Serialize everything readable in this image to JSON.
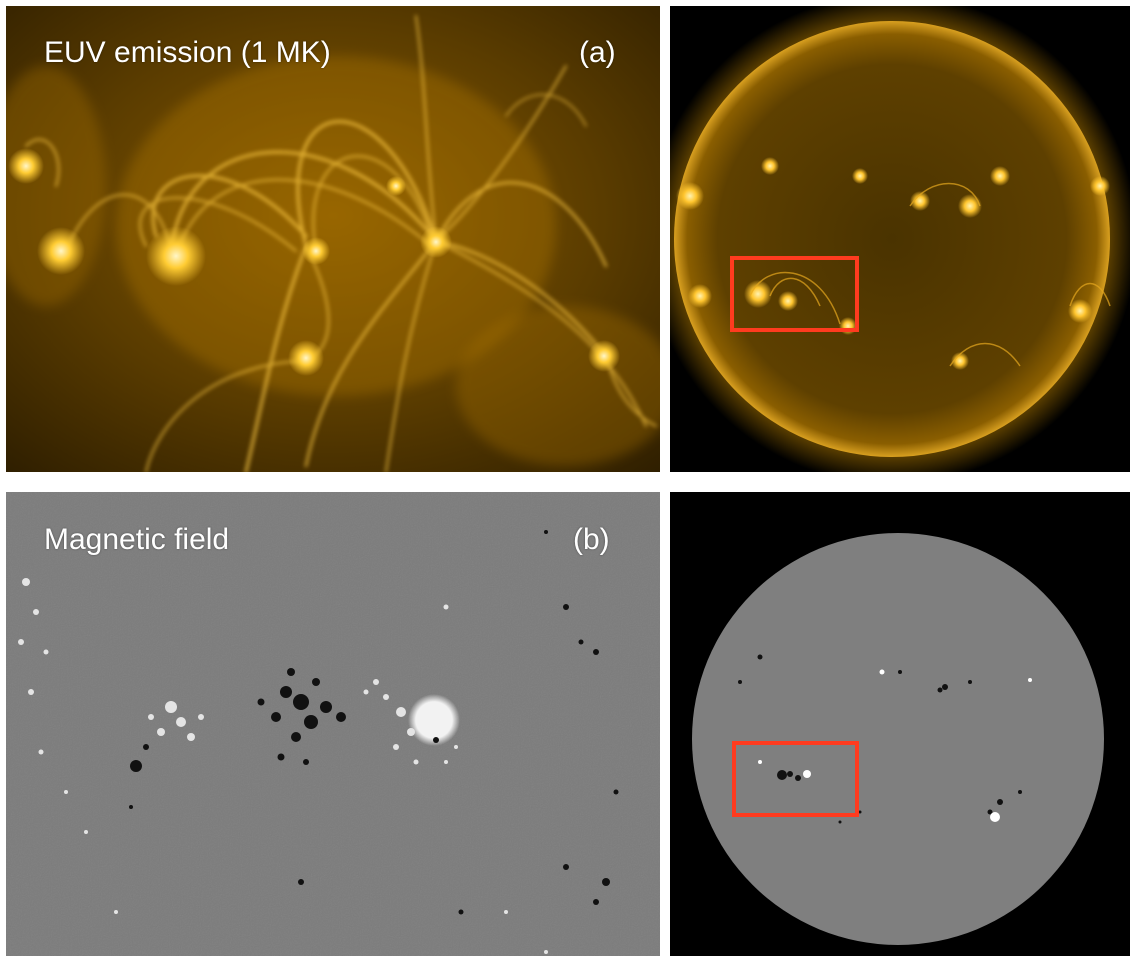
{
  "panels": {
    "euv": {
      "title": "EUV emission (1 MK)",
      "tag": "(a)"
    },
    "magnetic": {
      "title": "Magnetic field",
      "tag": "(b)"
    }
  },
  "colors": {
    "euv_dark": "#3a2600",
    "euv_mid": "#8a5c00",
    "euv_bright": "#ffcc33",
    "euv_core": "#fff2b0",
    "magnetogram_gray": "#7b7b7b",
    "disk_gray": "#7f7f7f",
    "space_black": "#000000",
    "highlight_box": "#ff3b1f"
  },
  "icons": {
    "euv_image": "sun-euv-zoom-image",
    "euv_disk": "sun-euv-full-disk-image",
    "mag_image": "magnetogram-zoom-image",
    "mag_disk": "magnetogram-full-disk-image",
    "region_box": "region-of-interest-box"
  }
}
